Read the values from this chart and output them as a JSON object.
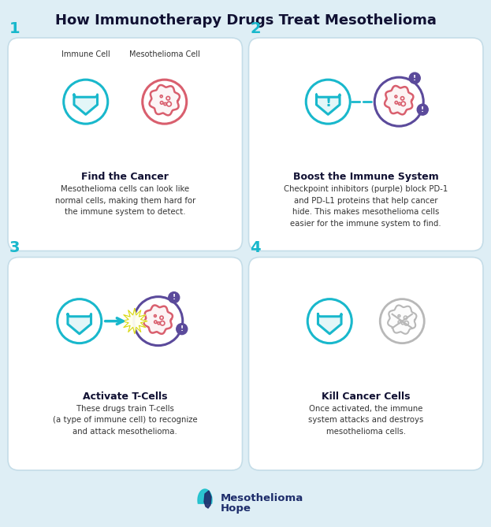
{
  "title": "How Immunotherapy Drugs Treat Mesothelioma",
  "background_color": "#deeef5",
  "panel_bg": "#ffffff",
  "teal": "#19b8cc",
  "purple": "#5b4a9b",
  "red": "#d95f6e",
  "gray": "#b8b8b8",
  "dark_navy": "#1e2d6b",
  "text_dark": "#333333",
  "panels": [
    {
      "number": "1",
      "title": "Find the Cancer",
      "body": "Mesothelioma cells can look like\nnormal cells, making them hard for\nthe immune system to detect.",
      "icon_type": "find"
    },
    {
      "number": "2",
      "title": "Boost the Immune System",
      "body": "Checkpoint inhibitors (purple) block PD-1\nand PD-L1 proteins that help cancer\nhide. This makes mesothelioma cells\neasier for the immune system to find.",
      "icon_type": "boost"
    },
    {
      "number": "3",
      "title": "Activate T-Cells",
      "body": "These drugs train T-cells\n(a type of immune cell) to recognize\nand attack mesothelioma.",
      "icon_type": "activate"
    },
    {
      "number": "4",
      "title": "Kill Cancer Cells",
      "body": "Once activated, the immune\nsystem attacks and destroys\nmesothelioma cells.",
      "icon_type": "kill"
    }
  ],
  "footer_text1": "Mesothelioma",
  "footer_text2": "Hope"
}
